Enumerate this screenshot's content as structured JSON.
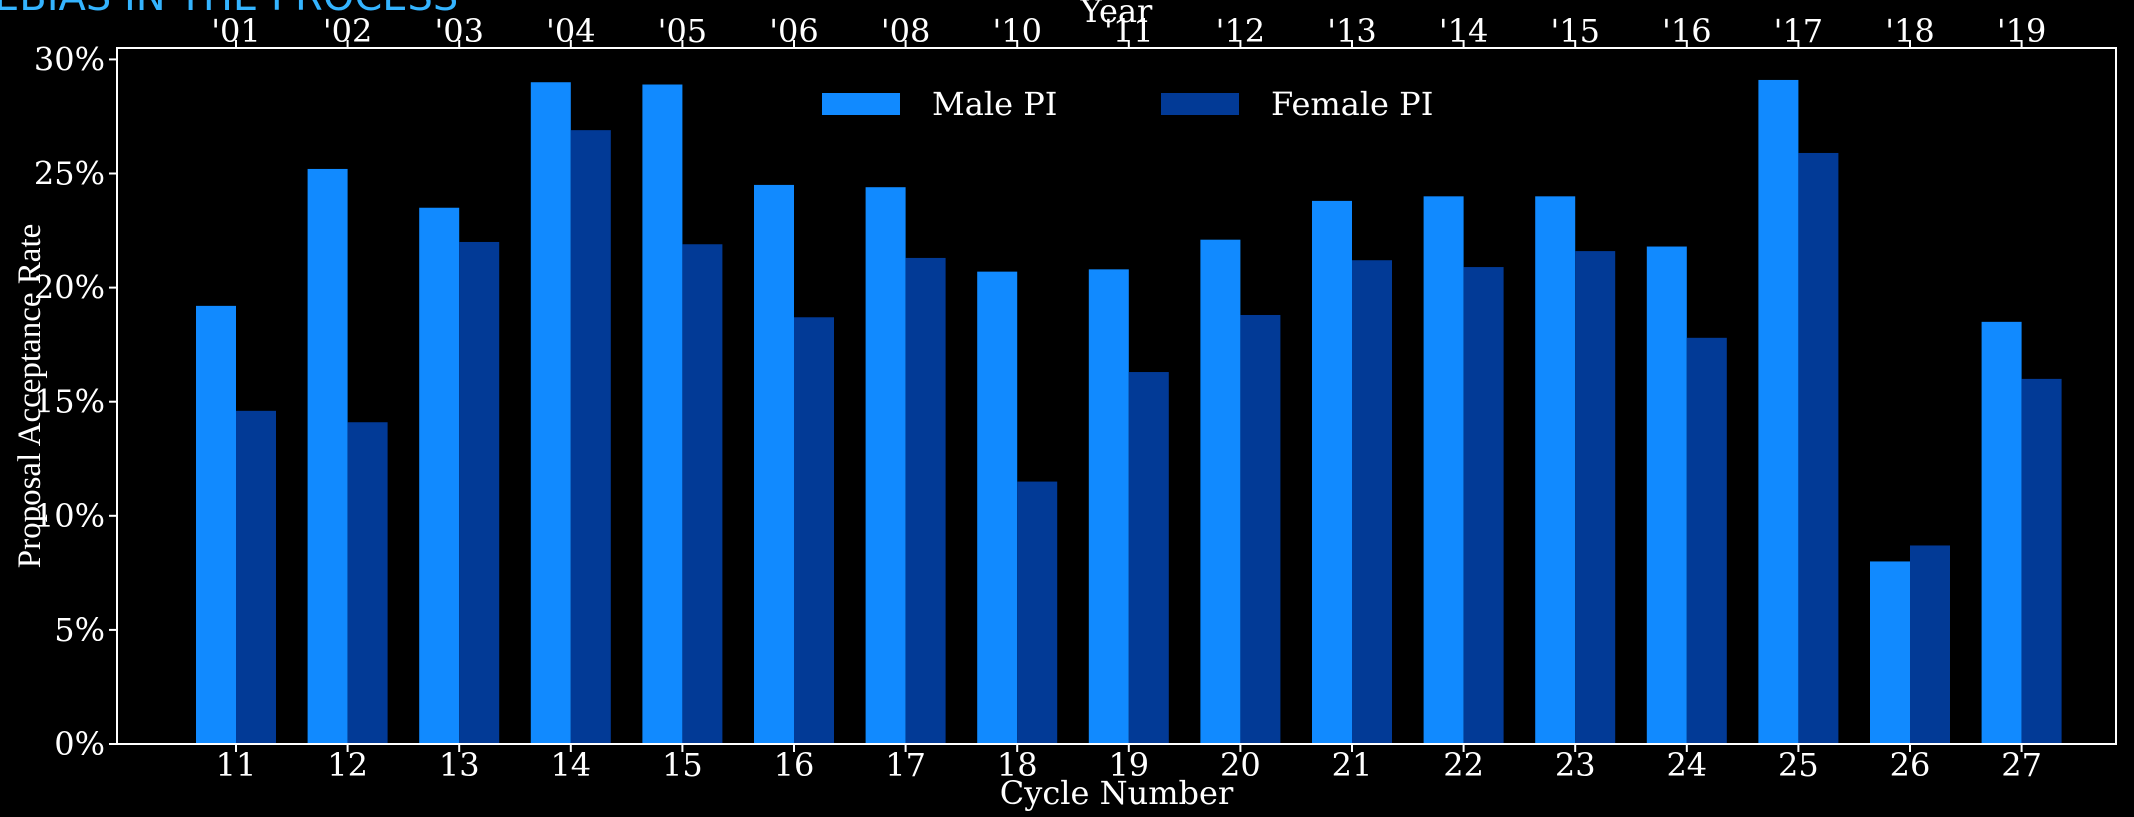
{
  "page": {
    "cut_title": "EBIAS IN THE PROCESS"
  },
  "colors": {
    "background": "#000000",
    "male": "#118aff",
    "female": "#023a96",
    "axis": "#ffffff",
    "cut_title": "#34b4ff"
  },
  "chart_data": {
    "type": "bar",
    "title": "",
    "xlabel": "Cycle Number",
    "ylabel": "Proposal Acceptance Rate",
    "top_xlabel": "Year",
    "categories": [
      "11",
      "12",
      "13",
      "14",
      "15",
      "16",
      "17",
      "18",
      "19",
      "20",
      "21",
      "22",
      "23",
      "24",
      "25",
      "26",
      "27"
    ],
    "top_categories": [
      "'01",
      "'02",
      "'03",
      "'04",
      "'05",
      "'06",
      "'08",
      "'10",
      "'11",
      "'12",
      "'13",
      "'14",
      "'15",
      "'16",
      "'17",
      "'18",
      "'19"
    ],
    "series": [
      {
        "name": "Male PI",
        "color": "#118aff",
        "values": [
          19.2,
          25.2,
          23.5,
          29.0,
          28.9,
          24.5,
          24.4,
          20.7,
          20.8,
          22.1,
          23.8,
          24.0,
          24.0,
          21.8,
          29.1,
          8.0,
          18.5
        ]
      },
      {
        "name": "Female PI",
        "color": "#023a96",
        "values": [
          14.6,
          14.1,
          22.0,
          26.9,
          21.9,
          18.7,
          21.3,
          11.5,
          16.3,
          18.8,
          21.2,
          20.9,
          21.6,
          17.8,
          25.9,
          8.7,
          16.0
        ]
      }
    ],
    "yticks": [
      "0%",
      "5%",
      "10%",
      "15%",
      "20%",
      "25%",
      "30%"
    ],
    "ytick_values": [
      0,
      5,
      10,
      15,
      20,
      25,
      30
    ],
    "ylim": [
      0,
      30.5
    ],
    "grid": false,
    "legend_position": "top-center"
  }
}
